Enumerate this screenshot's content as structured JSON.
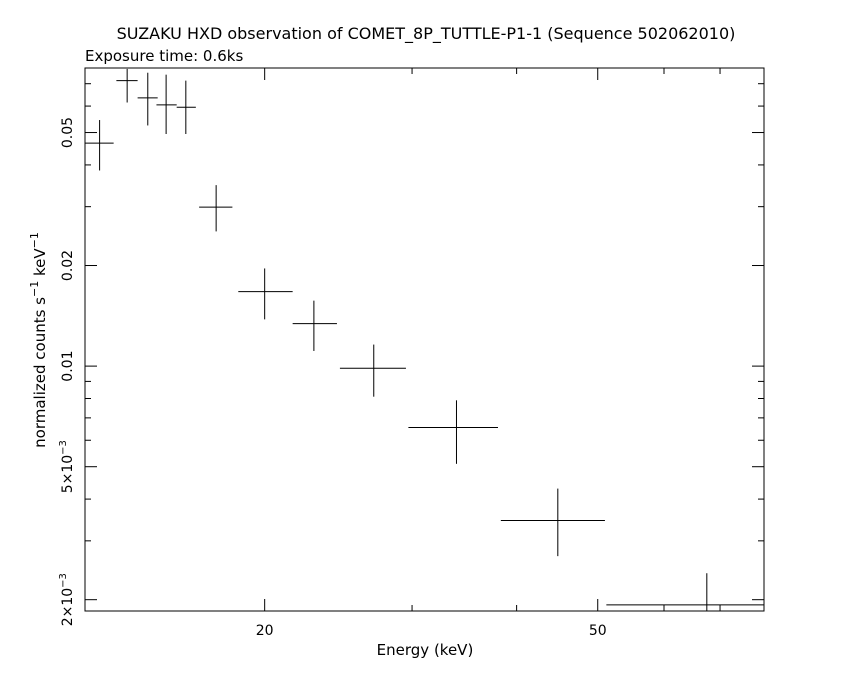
{
  "chart_data": {
    "type": "scatter",
    "title": "SUZAKU HXD observation of COMET_8P_TUTTLE-P1-1 (Sequence 502062010)",
    "subtitle": "Exposure time: 0.6ks",
    "xlabel": "Energy (keV)",
    "ylabel_parts": {
      "main": "normalized counts s",
      "exp1": "−1",
      "mid": " keV",
      "exp2": "−1"
    },
    "xscale": "log",
    "yscale": "log",
    "xlim": [
      12.2,
      79
    ],
    "ylim": [
      0.00185,
      0.078
    ],
    "x_major_ticks": [
      {
        "value": 20,
        "label": "20"
      },
      {
        "value": 50,
        "label": "50"
      }
    ],
    "x_minor_ticks": [
      30,
      40,
      60,
      70
    ],
    "y_major_ticks": [
      {
        "value": 0.002,
        "label_main": "2×10",
        "label_exp": "−3"
      },
      {
        "value": 0.005,
        "label_main": "5×10",
        "label_exp": "−3"
      },
      {
        "value": 0.01,
        "label_main": "0.01",
        "label_exp": ""
      },
      {
        "value": 0.02,
        "label_main": "0.02",
        "label_exp": ""
      },
      {
        "value": 0.05,
        "label_main": "0.05",
        "label_exp": ""
      }
    ],
    "y_minor_ticks": [
      0.003,
      0.004,
      0.006,
      0.007,
      0.008,
      0.009,
      0.03,
      0.04,
      0.06,
      0.07
    ],
    "points": [
      {
        "x": 12.7,
        "xlo": 12.2,
        "xhi": 13.2,
        "y": 0.0465,
        "ylo": 0.0385,
        "yhi": 0.0545
      },
      {
        "x": 13.7,
        "xlo": 13.3,
        "xhi": 14.1,
        "y": 0.0715,
        "ylo": 0.0615,
        "yhi": 0.0775
      },
      {
        "x": 14.5,
        "xlo": 14.1,
        "xhi": 14.9,
        "y": 0.0635,
        "ylo": 0.0525,
        "yhi": 0.0755
      },
      {
        "x": 15.25,
        "xlo": 14.85,
        "xhi": 15.7,
        "y": 0.0605,
        "ylo": 0.0495,
        "yhi": 0.0745
      },
      {
        "x": 16.1,
        "xlo": 15.7,
        "xhi": 16.55,
        "y": 0.0595,
        "ylo": 0.0495,
        "yhi": 0.0715
      },
      {
        "x": 17.5,
        "xlo": 16.7,
        "xhi": 18.3,
        "y": 0.0299,
        "ylo": 0.0253,
        "yhi": 0.0348
      },
      {
        "x": 20.0,
        "xlo": 18.6,
        "xhi": 21.6,
        "y": 0.0167,
        "ylo": 0.0138,
        "yhi": 0.0196
      },
      {
        "x": 22.9,
        "xlo": 21.6,
        "xhi": 24.4,
        "y": 0.0134,
        "ylo": 0.0111,
        "yhi": 0.0157
      },
      {
        "x": 27.0,
        "xlo": 24.6,
        "xhi": 29.5,
        "y": 0.00985,
        "ylo": 0.0081,
        "yhi": 0.0116
      },
      {
        "x": 33.9,
        "xlo": 29.7,
        "xhi": 38.0,
        "y": 0.00655,
        "ylo": 0.0051,
        "yhi": 0.0079
      },
      {
        "x": 44.8,
        "xlo": 38.3,
        "xhi": 51.0,
        "y": 0.00345,
        "ylo": 0.0027,
        "yhi": 0.0043
      },
      {
        "x": 67.5,
        "xlo": 51.2,
        "xhi": 79.0,
        "y": 0.00193,
        "ylo": 0.00185,
        "yhi": 0.0024
      }
    ]
  }
}
